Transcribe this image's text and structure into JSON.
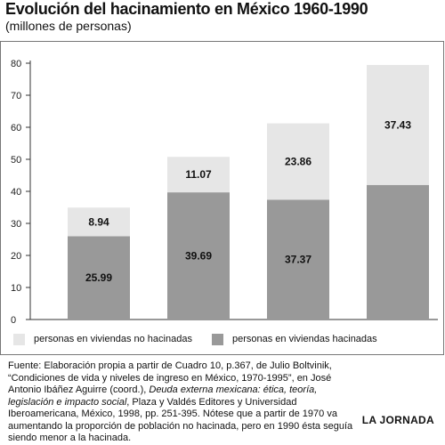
{
  "chart_data": {
    "type": "bar",
    "stacked": true,
    "title": "Evolución del hacinamiento en México 1960-1990",
    "subtitle": "(millones de personas)",
    "categories": [
      "",
      "",
      "",
      ""
    ],
    "series": [
      {
        "name": "personas en viviendas hacinadas",
        "values": [
          25.99,
          39.69,
          37.37,
          42.0
        ],
        "labels": [
          "25.99",
          "39.69",
          "37.37",
          ""
        ],
        "color": "#999999"
      },
      {
        "name": "personas en viviendas no hacinadas",
        "values": [
          8.94,
          11.07,
          23.86,
          37.43
        ],
        "labels": [
          "8.94",
          "11.07",
          "23.86",
          "37.43"
        ],
        "color": "#e6e6e6"
      }
    ],
    "ylim": [
      0,
      80
    ],
    "yticks": [
      "0",
      "10",
      "20",
      "30",
      "40",
      "50",
      "60",
      "70",
      "80"
    ],
    "grid": false,
    "legend_position": "bottom"
  },
  "footer": {
    "source_pre": "Fuente: Elaboración propia a partir de Cuadro 10, p.367, de Julio Boltvinik, “Condiciones de vida y niveles de ingreso en México, 1970-1995”, en José Antonio Ibáñez Aguirre (coord.), ",
    "source_italic": "Deuda externa mexicana: ética, teoría, legislación e impacto social",
    "source_post": ", Plaza y Valdés Editores y Universidad Iberoamericana, México, 1998, pp. 251-395. Nótese que a partir de 1970 va aumentando la proporción de población no hacinada, pero en 1990 ésta seguía siendo menor a la hacinada.",
    "brand": "LA JORNADA"
  }
}
